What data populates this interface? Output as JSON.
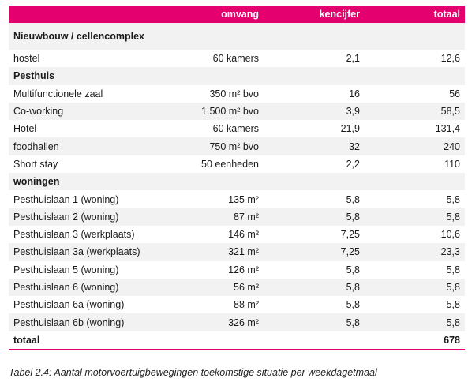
{
  "table": {
    "headers": [
      "",
      "omvang",
      "kencijfer",
      "totaal"
    ],
    "rows": [
      {
        "type": "group",
        "name": "Nieuwbouw / cellencomplex"
      },
      {
        "type": "data",
        "name": "hostel",
        "omvang": "60 kamers",
        "kencijfer": "2,1",
        "totaal": "12,6"
      },
      {
        "type": "group",
        "name": "Pesthuis"
      },
      {
        "type": "data",
        "name": "Multifunctionele zaal",
        "omvang": "350 m² bvo",
        "kencijfer": "16",
        "totaal": "56"
      },
      {
        "type": "data",
        "name": "Co-working",
        "omvang": "1.500 m² bvo",
        "kencijfer": "3,9",
        "totaal": "58,5"
      },
      {
        "type": "data",
        "name": "Hotel",
        "omvang": "60 kamers",
        "kencijfer": "21,9",
        "totaal": "131,4"
      },
      {
        "type": "data",
        "name": "foodhallen",
        "omvang": "750 m² bvo",
        "kencijfer": "32",
        "totaal": "240"
      },
      {
        "type": "data",
        "name": "Short stay",
        "omvang": "50 eenheden",
        "kencijfer": "2,2",
        "totaal": "110"
      },
      {
        "type": "group",
        "name": "woningen"
      },
      {
        "type": "data",
        "name": "Pesthuislaan 1 (woning)",
        "omvang": "135 m²",
        "kencijfer": "5,8",
        "totaal": "5,8"
      },
      {
        "type": "data",
        "name": "Pesthuislaan 2 (woning)",
        "omvang": "87 m²",
        "kencijfer": "5,8",
        "totaal": "5,8"
      },
      {
        "type": "data",
        "name": "Pesthuislaan 3 (werkplaats)",
        "omvang": "146 m²",
        "kencijfer": "7,25",
        "totaal": "10,6"
      },
      {
        "type": "data",
        "name": "Pesthuislaan 3a (werkplaats)",
        "omvang": "321 m²",
        "kencijfer": "7,25",
        "totaal": "23,3"
      },
      {
        "type": "data",
        "name": "Pesthuislaan 5 (woning)",
        "omvang": "126 m²",
        "kencijfer": "5,8",
        "totaal": "5,8"
      },
      {
        "type": "data",
        "name": "Pesthuislaan 6 (woning)",
        "omvang": "56 m²",
        "kencijfer": "5,8",
        "totaal": "5,8"
      },
      {
        "type": "data",
        "name": "Pesthuislaan 6a (woning)",
        "omvang": "88 m²",
        "kencijfer": "5,8",
        "totaal": "5,8"
      },
      {
        "type": "data",
        "name": "Pesthuislaan 6b (woning)",
        "omvang": "326 m²",
        "kencijfer": "5,8",
        "totaal": "5,8"
      },
      {
        "type": "total",
        "name": "totaal",
        "totaal": "678"
      }
    ]
  },
  "caption": "Tabel 2.4: Aantal motorvoertuigbewegingen toekomstige situatie per weekdagetmaal",
  "colors": {
    "header_bg": "#e4006e",
    "stripe": "#f2f2f2"
  }
}
